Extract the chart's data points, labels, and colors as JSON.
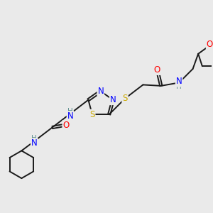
{
  "background_color": "#eaeaea",
  "bond_color": "#1a1a1a",
  "atom_colors": {
    "N": "#0000ff",
    "O": "#ff0000",
    "S": "#ccaa00",
    "H": "#5f9090",
    "C": "#1a1a1a"
  }
}
